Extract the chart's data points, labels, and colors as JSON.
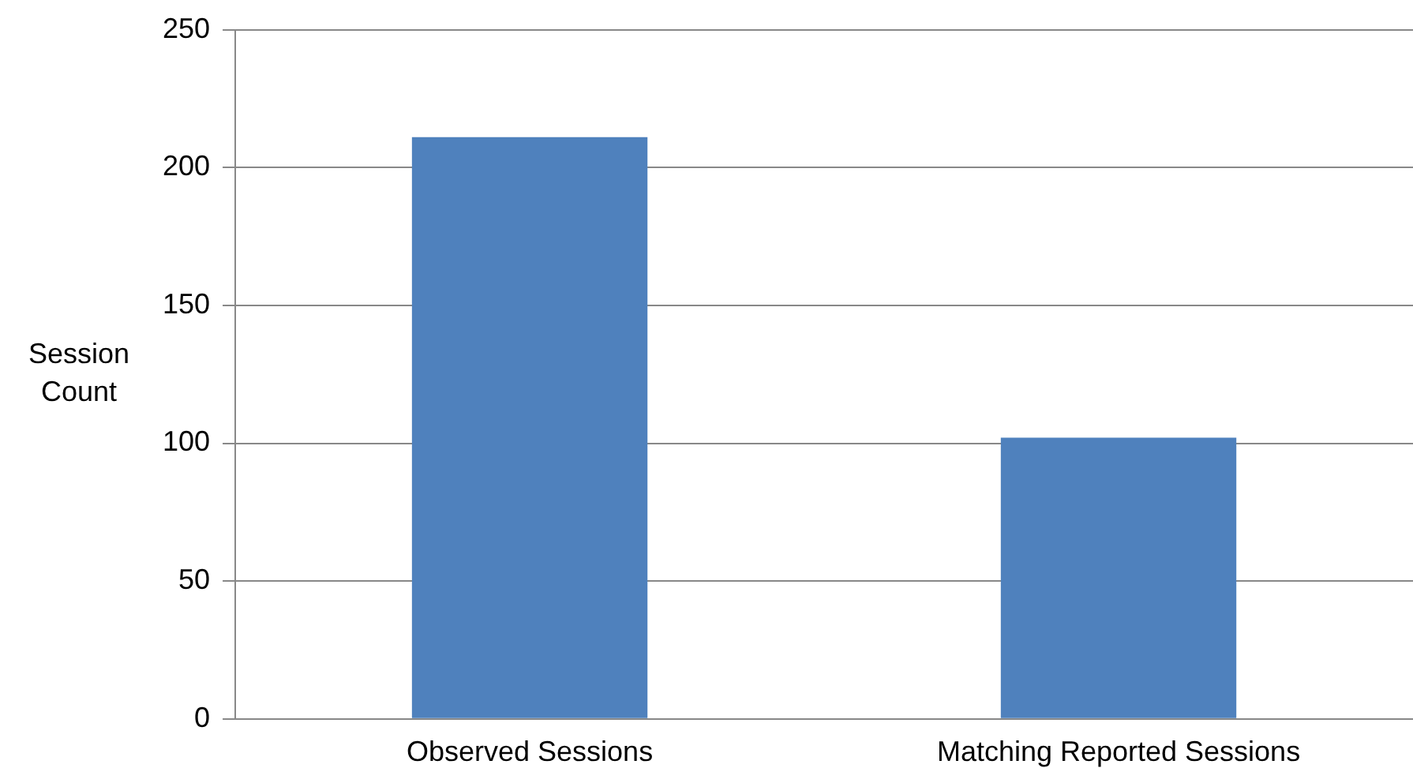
{
  "chart_data": {
    "type": "bar",
    "ylabel": "Session Count",
    "categories": [
      "Observed Sessions",
      "Matching Reported Sessions"
    ],
    "values": [
      211,
      102
    ],
    "color": "#4f81bd",
    "ylim": [
      0,
      250
    ],
    "yticks": [
      0,
      50,
      100,
      150,
      200,
      250
    ],
    "grid": "y",
    "legend": false
  }
}
